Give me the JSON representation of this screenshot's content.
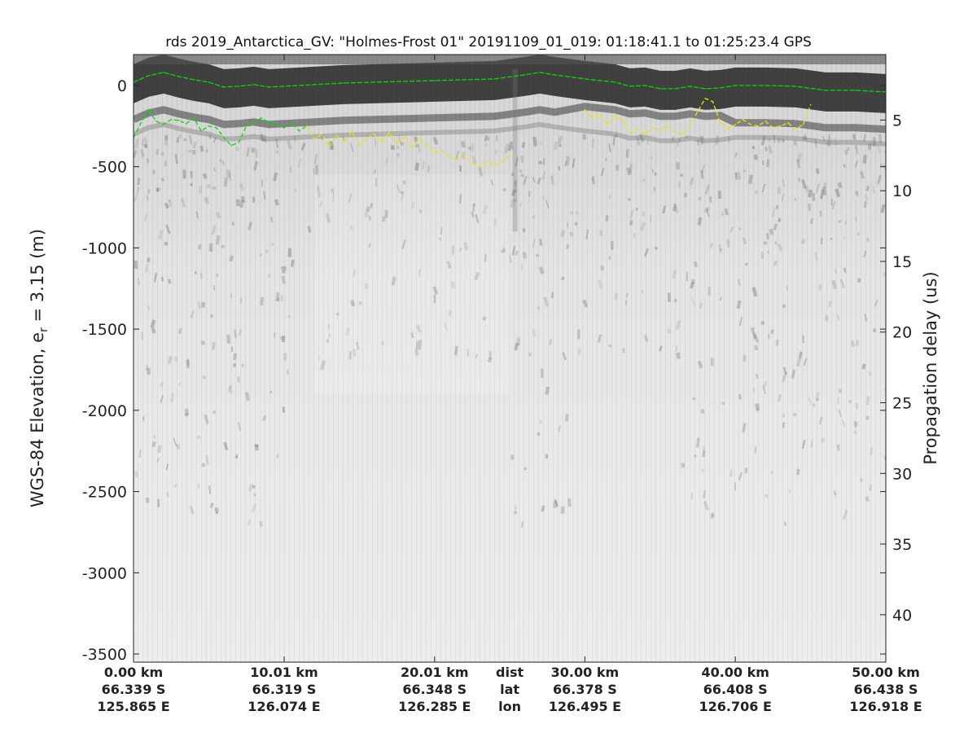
{
  "figure": {
    "title": "rds 2019_Antarctica_GV: \"Holmes-Frost 01\"  20191109_01_019: 01:18:41.1 to 01:25:23.4 GPS",
    "ylabel_left_prefix": "WGS-84 Elevation, e",
    "ylabel_left_sub": "r",
    "ylabel_left_suffix": " = 3.15 (m)",
    "ylabel_right": "Propagation delay (us)"
  },
  "chart_data": {
    "type": "heatmap",
    "description_axes": {
      "left": {
        "ylim": [
          -3550,
          190
        ],
        "ticks": [
          0,
          -500,
          -1000,
          -1500,
          -2000,
          -2500,
          -3000,
          -3500
        ],
        "tick_labels": [
          "0",
          "-500",
          "-1000",
          "-1500",
          "-2000",
          "-2500",
          "-3000",
          "-3500"
        ]
      },
      "right": {
        "ticks": [
          5,
          10,
          15,
          20,
          25,
          30,
          35,
          40
        ],
        "tick_labels": [
          "5",
          "10",
          "15",
          "20",
          "25",
          "30",
          "35",
          "40"
        ]
      },
      "x": {
        "range_km": [
          0,
          50
        ],
        "ticks_km": [
          0,
          10.01,
          20.01,
          30.0,
          40.0,
          50.0
        ],
        "rows": [
          {
            "name": "dist",
            "labels": [
              "0.00 km",
              "10.01 km",
              "20.01 km",
              "30.00 km",
              "40.00 km",
              "50.00 km"
            ]
          },
          {
            "name": "lat",
            "labels": [
              "66.339 S",
              "66.319 S",
              "66.348 S",
              "66.378 S",
              "66.408 S",
              "66.438 S"
            ]
          },
          {
            "name": "lon",
            "labels": [
              "125.865 E",
              "126.074 E",
              "126.285 E",
              "126.495 E",
              "126.706 E",
              "126.918 E"
            ]
          }
        ]
      }
    },
    "colormap": "gray (radar echogram)",
    "grid": false,
    "series": [
      {
        "name": "surface",
        "color": "#00dd00",
        "style": "dashed / solid",
        "x_km": [
          0,
          1,
          2,
          3,
          4,
          5,
          6,
          7,
          8,
          9,
          10,
          12,
          14,
          16,
          18,
          20,
          22,
          24,
          26,
          27,
          28,
          30,
          32,
          33,
          34,
          35,
          36,
          37,
          38,
          39,
          40,
          42,
          44,
          46,
          48,
          50
        ],
        "elev_m": [
          20,
          60,
          80,
          55,
          35,
          20,
          -10,
          -5,
          5,
          -10,
          -5,
          5,
          15,
          20,
          25,
          30,
          35,
          40,
          65,
          80,
          65,
          40,
          20,
          -5,
          0,
          -20,
          -20,
          -5,
          -20,
          -15,
          0,
          0,
          -5,
          -30,
          -30,
          -40
        ]
      },
      {
        "name": "bottom",
        "color": "#00dd00",
        "style": "dashed",
        "x_km": [
          0,
          0.5,
          1,
          1.5,
          2,
          2.5,
          3,
          3.5,
          4,
          4.5,
          5,
          5.5,
          6,
          6.5,
          7,
          7.5,
          8,
          8.5,
          9,
          9.5,
          10,
          10.5,
          11,
          11.5
        ],
        "elev_m": [
          -320,
          -230,
          -150,
          -220,
          -240,
          -210,
          -215,
          -235,
          -200,
          -280,
          -250,
          -260,
          -320,
          -370,
          -350,
          -250,
          -230,
          -200,
          -230,
          -240,
          -260,
          -230,
          -280,
          -250
        ]
      },
      {
        "name": "bottom",
        "color": "#e8e800",
        "style": "dashed",
        "x_km": [
          11.5,
          12,
          12.5,
          13,
          13.5,
          14,
          14.5,
          15,
          15.5,
          16,
          16.5,
          17,
          17.5,
          18,
          18.5,
          19,
          19.5,
          20,
          20.5,
          21,
          21.5,
          22,
          22.5,
          23,
          23.5,
          24,
          24.5,
          25
        ],
        "elev_m": [
          -250,
          -330,
          -300,
          -380,
          -310,
          -350,
          -280,
          -370,
          -330,
          -300,
          -350,
          -290,
          -360,
          -320,
          -380,
          -330,
          -370,
          -410,
          -400,
          -440,
          -460,
          -430,
          -480,
          -500,
          -470,
          -490,
          -470,
          -430
        ]
      },
      {
        "name": "bottom",
        "color": "#e8e800",
        "style": "dashed",
        "x_km": [
          30,
          30.5,
          31,
          31.5,
          32,
          32.5,
          33,
          33.5,
          34,
          34.5,
          35,
          35.5,
          36,
          36.5,
          37,
          37.5,
          38,
          38.5,
          39,
          39.5,
          40,
          40.5,
          41,
          41.5,
          42,
          42.5,
          43,
          43.5,
          44,
          44.5,
          45
        ],
        "elev_m": [
          -150,
          -200,
          -180,
          -240,
          -190,
          -210,
          -290,
          -270,
          -300,
          -260,
          -280,
          -250,
          -290,
          -300,
          -240,
          -160,
          -80,
          -100,
          -230,
          -270,
          -240,
          -210,
          -240,
          -250,
          -220,
          -260,
          -250,
          -230,
          -270,
          -240,
          -120
        ]
      }
    ]
  }
}
